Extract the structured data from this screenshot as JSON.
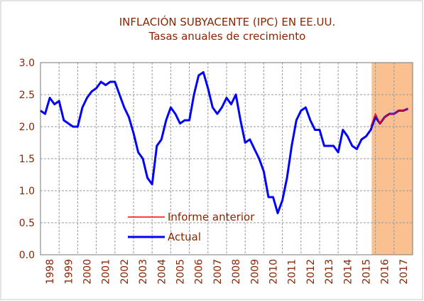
{
  "chart_data": {
    "type": "line",
    "title": "INFLACIÓN SUBYACENTE (IPC) EN EE.UU.",
    "subtitle": "Tasas anuales de crecimiento",
    "x": [
      1998,
      1998.25,
      1998.5,
      1998.75,
      1999,
      1999.25,
      1999.5,
      1999.75,
      2000,
      2000.25,
      2000.5,
      2000.75,
      2001,
      2001.25,
      2001.5,
      2001.75,
      2002,
      2002.25,
      2002.5,
      2002.75,
      2003,
      2003.25,
      2003.5,
      2003.75,
      2004,
      2004.25,
      2004.5,
      2004.75,
      2005,
      2005.25,
      2005.5,
      2005.75,
      2006,
      2006.25,
      2006.5,
      2006.75,
      2007,
      2007.25,
      2007.5,
      2007.75,
      2008,
      2008.25,
      2008.5,
      2008.75,
      2009,
      2009.25,
      2009.5,
      2009.75,
      2010,
      2010.25,
      2010.5,
      2010.75,
      2011,
      2011.25,
      2011.5,
      2011.75,
      2012,
      2012.25,
      2012.5,
      2012.75,
      2013,
      2013.25,
      2013.5,
      2013.75,
      2014,
      2014.25,
      2014.5,
      2014.75,
      2015,
      2015.25,
      2015.5,
      2015.75,
      2016,
      2016.25,
      2016.5,
      2016.75,
      2017,
      2017.25,
      2017.5,
      2017.75
    ],
    "series": [
      {
        "name": "Informe anterior",
        "color": "#ff0000",
        "width": 1.5,
        "values": [
          null,
          null,
          null,
          null,
          null,
          null,
          null,
          null,
          null,
          null,
          null,
          null,
          null,
          null,
          null,
          null,
          null,
          null,
          null,
          null,
          null,
          null,
          null,
          null,
          null,
          null,
          null,
          null,
          null,
          null,
          null,
          null,
          null,
          null,
          null,
          null,
          null,
          null,
          null,
          null,
          null,
          null,
          null,
          null,
          null,
          null,
          null,
          null,
          null,
          null,
          null,
          null,
          null,
          null,
          null,
          null,
          null,
          null,
          null,
          null,
          null,
          null,
          null,
          null,
          null,
          null,
          null,
          null,
          null,
          null,
          null,
          2.0,
          2.2,
          2.05,
          2.15,
          2.2,
          2.2,
          2.25,
          2.25,
          2.28
        ]
      },
      {
        "name": "Actual",
        "color": "#0000ff",
        "width": 3,
        "values": [
          2.25,
          2.2,
          2.45,
          2.35,
          2.4,
          2.1,
          2.05,
          2.0,
          2.0,
          2.3,
          2.45,
          2.55,
          2.6,
          2.7,
          2.65,
          2.7,
          2.7,
          2.5,
          2.3,
          2.15,
          1.9,
          1.6,
          1.5,
          1.2,
          1.1,
          1.7,
          1.8,
          2.1,
          2.3,
          2.2,
          2.05,
          2.1,
          2.1,
          2.5,
          2.8,
          2.85,
          2.6,
          2.3,
          2.2,
          2.3,
          2.45,
          2.35,
          2.5,
          2.1,
          1.75,
          1.8,
          1.65,
          1.5,
          1.3,
          0.9,
          0.9,
          0.65,
          0.85,
          1.2,
          1.7,
          2.1,
          2.25,
          2.3,
          2.1,
          1.95,
          1.95,
          1.7,
          1.7,
          1.7,
          1.6,
          1.95,
          1.85,
          1.7,
          1.65,
          1.8,
          1.85,
          1.95,
          2.15,
          2.05,
          2.15,
          2.2,
          2.2,
          2.25,
          2.25,
          2.28
        ]
      }
    ],
    "xlim": [
      1998,
      2018
    ],
    "xticks": [
      1998,
      1999,
      2000,
      2001,
      2002,
      2003,
      2004,
      2005,
      2006,
      2007,
      2008,
      2009,
      2010,
      2011,
      2012,
      2013,
      2014,
      2015,
      2016,
      2017
    ],
    "ylim": [
      0,
      3
    ],
    "yticks": [
      {
        "value": 0,
        "label": "0.0"
      },
      {
        "value": 0.5,
        "label": "0.5"
      },
      {
        "value": 1,
        "label": "1.0"
      },
      {
        "value": 1.5,
        "label": "1.5"
      },
      {
        "value": 2,
        "label": "2.0"
      },
      {
        "value": 2.5,
        "label": "2.5"
      },
      {
        "value": 3,
        "label": "3.0"
      }
    ],
    "grid": true,
    "shaded_region": [
      2015.8,
      2018
    ],
    "shaded_color": "#fac090"
  }
}
